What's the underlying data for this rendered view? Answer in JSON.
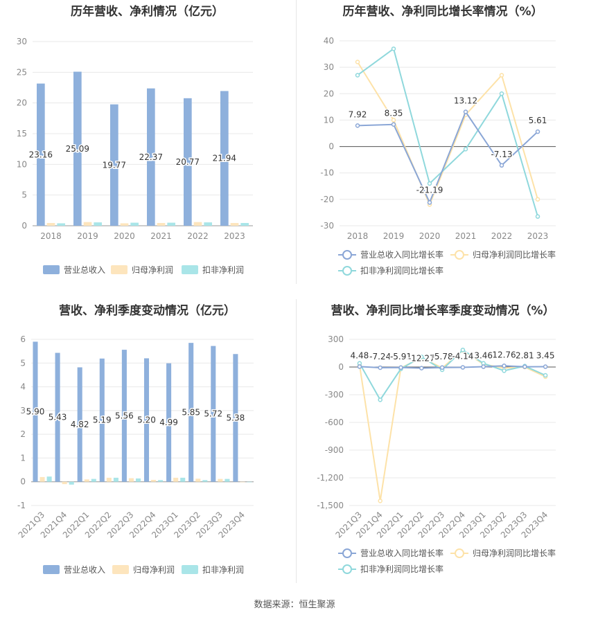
{
  "source_label": "数据来源：恒生聚源",
  "colors": {
    "revenue": "#8eb0dc",
    "net_profit": "#fde5bd",
    "deducted_profit": "#a9e5e8",
    "revenue_line": "#8aa6d6",
    "net_line": "#fde2a8",
    "deducted_line": "#8fd8dc"
  },
  "chart_data": [
    {
      "type": "bar",
      "title": "历年营收、净利情况（亿元）",
      "categories": [
        "2018",
        "2019",
        "2020",
        "2021",
        "2022",
        "2023"
      ],
      "ylim": [
        0,
        30
      ],
      "yticks": [
        "0",
        "5",
        "10",
        "15",
        "20",
        "25",
        "30"
      ],
      "series": [
        {
          "name": "营业总收入",
          "values": [
            23.16,
            25.09,
            19.77,
            22.37,
            20.77,
            21.94
          ],
          "labels": [
            "23.16",
            "25.09",
            "19.77",
            "22.37",
            "20.77",
            "21.94"
          ]
        },
        {
          "name": "归母净利润",
          "values": [
            0.45,
            0.6,
            0.4,
            0.45,
            0.6,
            0.45
          ]
        },
        {
          "name": "扣非净利润",
          "values": [
            0.4,
            0.55,
            0.5,
            0.5,
            0.55,
            0.45
          ]
        }
      ],
      "legend": "bottom"
    },
    {
      "type": "line",
      "title": "历年营收、净利同比增长率情况（%）",
      "categories": [
        "2018",
        "2019",
        "2020",
        "2021",
        "2022",
        "2023"
      ],
      "ylim": [
        -30,
        40
      ],
      "yticks": [
        "-30",
        "-20",
        "-10",
        "0",
        "10",
        "20",
        "30",
        "40"
      ],
      "series": [
        {
          "name": "营业总收入同比增长率",
          "values": [
            7.92,
            8.35,
            -21.19,
            13.12,
            -7.13,
            5.61
          ],
          "labels": [
            "7.92",
            "8.35",
            "-21.19",
            "13.12",
            "-7.13",
            "5.61"
          ]
        },
        {
          "name": "归母净利润同比增长率",
          "values": [
            32,
            10,
            -22,
            12,
            27,
            -20
          ]
        },
        {
          "name": "扣非净利润同比增长率",
          "values": [
            27,
            37,
            -14,
            -1,
            20,
            -26.5
          ]
        }
      ],
      "legend": "bottom"
    },
    {
      "type": "bar",
      "title": "营收、净利季度变动情况（亿元）",
      "categories": [
        "2021Q3",
        "2021Q4",
        "2022Q1",
        "2022Q2",
        "2022Q3",
        "2022Q4",
        "2023Q1",
        "2023Q2",
        "2023Q3",
        "2023Q4"
      ],
      "ylim": [
        -1,
        6
      ],
      "yticks": [
        "-1",
        "0",
        "1",
        "2",
        "3",
        "4",
        "5",
        "6"
      ],
      "series": [
        {
          "name": "营业总收入",
          "values": [
            5.9,
            5.43,
            4.82,
            5.19,
            5.56,
            5.2,
            4.99,
            5.85,
            5.72,
            5.38
          ],
          "labels": [
            "5.90",
            "5.43",
            "4.82",
            "5.19",
            "5.56",
            "5.20",
            "4.99",
            "5.85",
            "5.72",
            "5.38"
          ]
        },
        {
          "name": "归母净利润",
          "values": [
            0.2,
            -0.1,
            0.1,
            0.17,
            0.15,
            0.08,
            0.17,
            0.13,
            0.12,
            -0.02
          ]
        },
        {
          "name": "扣非净利润",
          "values": [
            0.22,
            -0.12,
            0.12,
            0.17,
            0.14,
            0.07,
            0.17,
            0.07,
            0.12,
            -0.02
          ]
        }
      ],
      "legend": "bottom"
    },
    {
      "type": "line",
      "title": "营收、净利同比增长率季度变动情况（%）",
      "categories": [
        "2021Q3",
        "2021Q4",
        "2022Q1",
        "2022Q2",
        "2022Q3",
        "2022Q4",
        "2023Q1",
        "2023Q2",
        "2023Q3",
        "2023Q4"
      ],
      "ylim": [
        -1500,
        300
      ],
      "yticks": [
        "-1,500",
        "-1,200",
        "-900",
        "-600",
        "-300",
        "0",
        "300"
      ],
      "series": [
        {
          "name": "营业总收入同比增长率",
          "values": [
            4.48,
            -7.24,
            -5.91,
            -12.27,
            -5.78,
            -4.14,
            3.46,
            12.76,
            2.81,
            3.45
          ],
          "labels": [
            "4.48",
            "-7.24",
            "-5.91",
            "-12.27",
            "-5.78",
            "-4.14",
            "3.46",
            "12.76",
            "2.81",
            "3.45"
          ]
        },
        {
          "name": "归母净利润同比增长率",
          "values": [
            20,
            -1450,
            -10,
            100,
            -10,
            180,
            30,
            -10,
            0,
            -105
          ]
        },
        {
          "name": "扣非净利润同比增长率",
          "values": [
            40,
            -355,
            -20,
            110,
            -30,
            185,
            40,
            -40,
            10,
            -90
          ]
        }
      ],
      "legend": "bottom"
    }
  ]
}
